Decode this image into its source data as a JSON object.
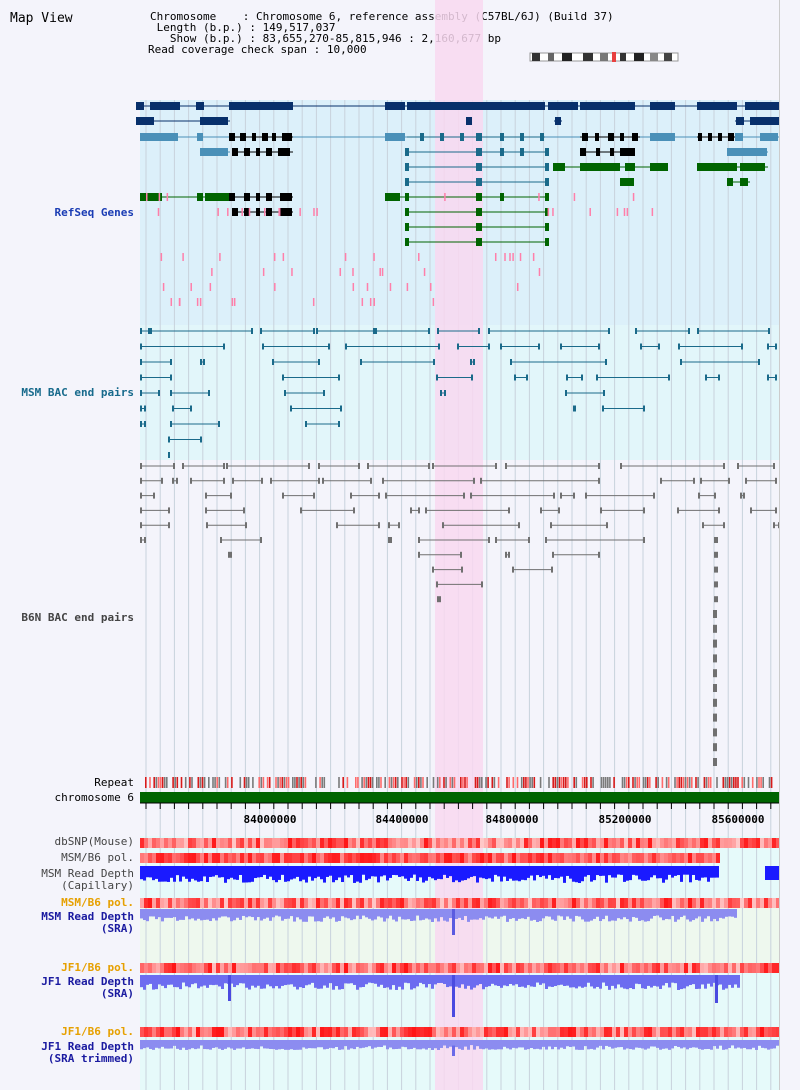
{
  "page_title": "Map View",
  "info": {
    "chromosome_label": "Chromosome",
    "chromosome_value": "Chromosome 6, reference assembly (C57BL/6J) (Build 37)",
    "length_label": "Length (b.p.)",
    "length_value": "149,517,037",
    "show_label": "Show (b.p.)",
    "show_value": "83,655,270-85,815,946 : 2,160,677 bp",
    "coverage_label": "Read coverage check span",
    "coverage_value": "10,000"
  },
  "tracks": {
    "refseq": "RefSeq Genes",
    "msm_bac": "MSM BAC end pairs",
    "b6n_bac": "B6N BAC end pairs",
    "repeat": "Repeat",
    "chromosome": "chromosome 6",
    "dbsnp": "dbSNP(Mouse)",
    "msm_b6_pol_1": "MSM/B6 pol.",
    "msm_depth_cap_1": "MSM Read Depth",
    "msm_depth_cap_2": "(Capillary)",
    "msm_b6_pol_2": "MSM/B6 pol.",
    "msm_depth_sra_1": "MSM Read Depth",
    "msm_depth_sra_2": "(SRA)",
    "jf1_b6_pol_1": "JF1/B6 pol.",
    "jf1_depth_sra_1": "JF1 Read Depth",
    "jf1_depth_sra_2": "(SRA)",
    "jf1_b6_pol_2": "JF1/B6 pol.",
    "jf1_depth_trim_1": "JF1 Read Depth",
    "jf1_depth_trim_2": "(SRA trimmed)"
  },
  "axis": {
    "ticks": [
      "84000000",
      "84400000",
      "84800000",
      "85200000",
      "85600000"
    ]
  },
  "colors": {
    "refseq_bg": "#dcf0fa",
    "msm_bac_bg": "#e2f6fa",
    "highlight": "#f8d8f0",
    "navy_gene": "#08306b",
    "steel_gene": "#4a90b8",
    "green_gene": "#006400",
    "teal_line": "#1a6a8a",
    "gray_line": "#707070",
    "chromosome_bar": "#006400"
  }
}
